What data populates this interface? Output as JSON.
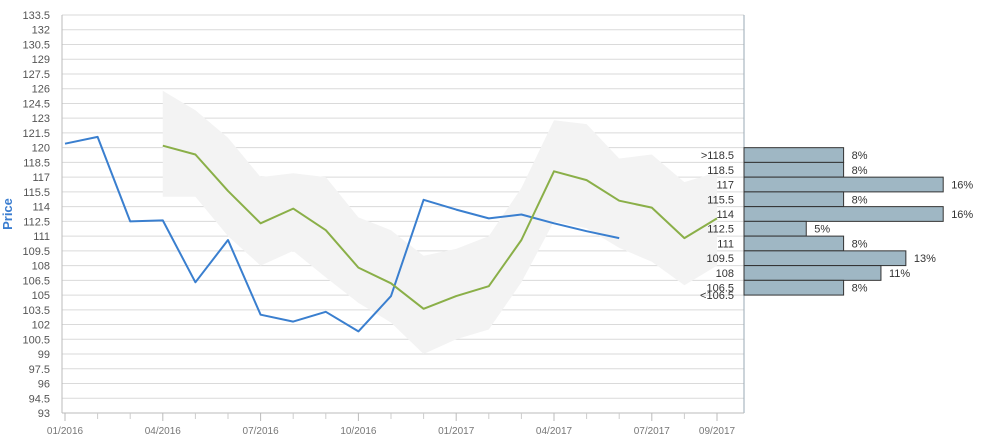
{
  "chart_data": {
    "type": "line",
    "ylabel": "Price",
    "ylim": [
      93,
      133.5
    ],
    "yticks": [
      "93",
      "94.5",
      "96",
      "97.5",
      "99",
      "100.5",
      "102",
      "103.5",
      "105",
      "106.5",
      "108",
      "109.5",
      "111",
      "112.5",
      "114",
      "115.5",
      "117",
      "118.5",
      "120",
      "121.5",
      "123",
      "124.5",
      "126",
      "127.5",
      "129",
      "130.5",
      "132",
      "133.5"
    ],
    "x_labels": [
      {
        "label": "01/2016",
        "month": 0
      },
      {
        "label": "04/2016",
        "month": 3
      },
      {
        "label": "07/2016",
        "month": 6
      },
      {
        "label": "10/2016",
        "month": 9
      },
      {
        "label": "01/2017",
        "month": 12
      },
      {
        "label": "04/2017",
        "month": 15
      },
      {
        "label": "07/2017",
        "month": 18
      },
      {
        "label": "09/2017",
        "month": 20
      }
    ],
    "x_minor_months": [
      1,
      2,
      4,
      5,
      7,
      8,
      10,
      11,
      13,
      14,
      16,
      17,
      19
    ],
    "grid": true,
    "series": [
      {
        "color": "#3a7fcf",
        "x": [
          0,
          1,
          2,
          3,
          4,
          5,
          6,
          7,
          8,
          9,
          10,
          11,
          12,
          13,
          14,
          15,
          16,
          17
        ],
        "values": [
          120.4,
          121.1,
          112.5,
          112.6,
          106.3,
          110.6,
          103.0,
          102.3,
          103.3,
          101.3,
          104.9,
          114.7,
          113.7,
          112.8,
          113.2,
          112.3,
          111.5,
          110.8
        ]
      },
      {
        "color": "#8aaf48",
        "x": [
          3,
          4,
          5,
          6,
          7,
          8,
          9,
          10,
          11,
          12,
          13,
          14,
          15,
          16,
          17,
          18,
          19,
          20
        ],
        "values": [
          120.2,
          119.3,
          115.6,
          112.3,
          113.8,
          111.6,
          107.8,
          106.2,
          103.6,
          104.9,
          105.9,
          110.6,
          117.6,
          116.7,
          114.6,
          113.9,
          110.8,
          112.8
        ]
      }
    ],
    "band": {
      "color": "#f3f3f3",
      "x": [
        3,
        4,
        5,
        6,
        7,
        8,
        9,
        10,
        11,
        12,
        13,
        14,
        15,
        16,
        17,
        18,
        19,
        20
      ],
      "upper": [
        125.8,
        123.8,
        121.0,
        117.0,
        117.4,
        117.0,
        112.9,
        111.6,
        109.0,
        109.7,
        111.0,
        115.9,
        122.8,
        122.4,
        118.9,
        119.3,
        116.5,
        117.5
      ],
      "lower": [
        115.0,
        115.0,
        111.0,
        108.0,
        109.5,
        106.8,
        104.2,
        102.2,
        99.0,
        100.5,
        101.5,
        106.3,
        112.5,
        111.8,
        109.8,
        108.4,
        106.0,
        108.0
      ]
    },
    "histogram": {
      "color": "#9fb7c4",
      "bins": [
        {
          "label": ">118.5",
          "low": 118.5,
          "high": 120,
          "percent": 8,
          "percent_label": "8%"
        },
        {
          "label": "118.5",
          "low": 117,
          "high": 118.5,
          "percent": 8,
          "percent_label": "8%"
        },
        {
          "label": "117",
          "low": 115.5,
          "high": 117,
          "percent": 16,
          "percent_label": "16%"
        },
        {
          "label": "115.5",
          "low": 114,
          "high": 115.5,
          "percent": 8,
          "percent_label": "8%"
        },
        {
          "label": "114",
          "low": 112.5,
          "high": 114,
          "percent": 16,
          "percent_label": "16%"
        },
        {
          "label": "112.5",
          "low": 111,
          "high": 112.5,
          "percent": 5,
          "percent_label": "5%"
        },
        {
          "label": "111",
          "low": 109.5,
          "high": 111,
          "percent": 8,
          "percent_label": "8%"
        },
        {
          "label": "109.5",
          "low": 108,
          "high": 109.5,
          "percent": 13,
          "percent_label": "13%"
        },
        {
          "label": "108",
          "low": 106.5,
          "high": 108,
          "percent": 11,
          "percent_label": "11%"
        },
        {
          "label": "106.5",
          "low": 105,
          "high": 106.5,
          "percent": 8,
          "percent_label": "8%"
        },
        {
          "label": "<106.5",
          "low": 105,
          "high": 105,
          "percent": null,
          "percent_label": ""
        }
      ]
    }
  }
}
